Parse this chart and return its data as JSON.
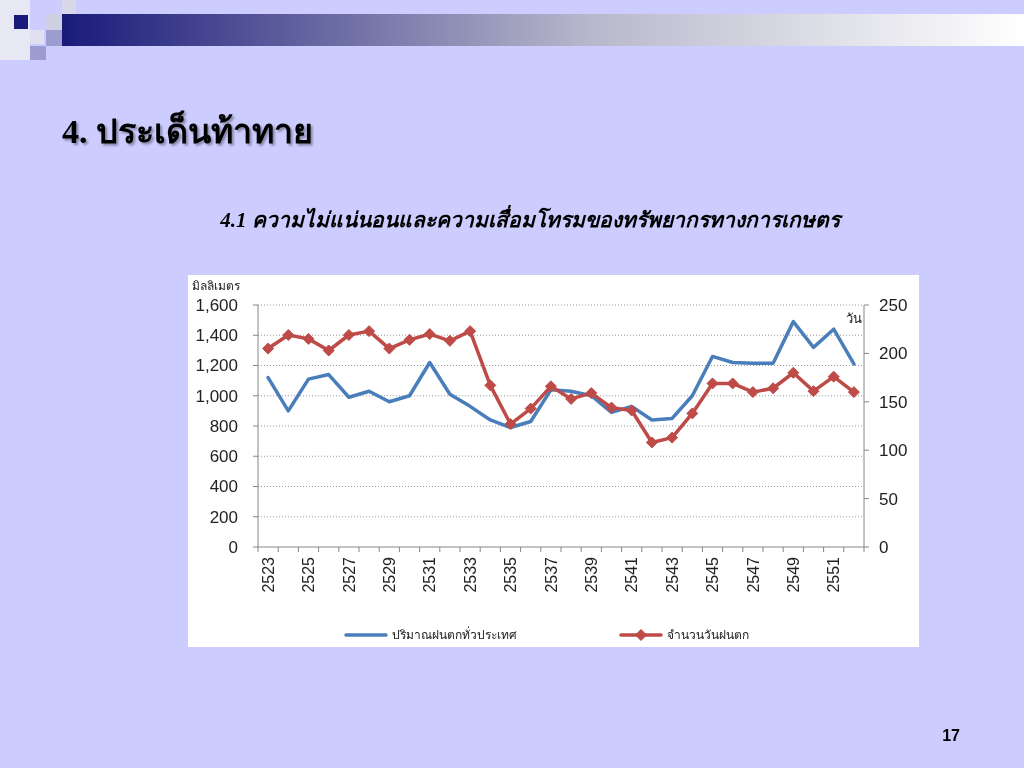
{
  "chart_data": {
    "type": "line",
    "title": "4. ประเด็นท้าทาย",
    "subtitle": "4.1  ความไม่แน่นอนและความเสื่อมโทรมของทรัพยากรทางการเกษตร",
    "ylabel": "มิลลิเมตร",
    "y2label": "วัน",
    "categories": [
      "2523",
      null,
      "2525",
      null,
      "2527",
      null,
      "2529",
      null,
      "2531",
      null,
      "2533",
      null,
      "2535",
      null,
      "2537",
      null,
      "2539",
      null,
      "2541",
      null,
      "2543",
      null,
      "2545",
      null,
      "2547",
      null,
      "2549",
      null,
      "2551",
      null
    ],
    "series": [
      {
        "name": "ปริมาณฝนตกทั่วประเทศ",
        "color": "#4a7ebb",
        "values": [
          1120,
          900,
          1110,
          1140,
          990,
          1030,
          960,
          1000,
          1220,
          1010,
          930,
          840,
          790,
          830,
          1040,
          1030,
          1000,
          890,
          930,
          840,
          850,
          1000,
          1260,
          1220,
          1215,
          1215,
          1490,
          1320,
          1440,
          1210
        ]
      },
      {
        "name": "จำนวนวันฝนตก",
        "color": "#be4b48",
        "axis": "y2",
        "marker": "diamond",
        "values": [
          205,
          219,
          215,
          203,
          219,
          223,
          205,
          214,
          220,
          213,
          223,
          167,
          127,
          143,
          166,
          153,
          159,
          144,
          141,
          108,
          113,
          138,
          169,
          169,
          160,
          164,
          180,
          161,
          176,
          160
        ]
      }
    ],
    "ylim": [
      0,
      1600
    ],
    "yticks": [
      0,
      200,
      400,
      600,
      800,
      {
        "value": 1000,
        "label": "1,000"
      },
      {
        "value": 1200,
        "label": "1,200"
      },
      {
        "value": 1400,
        "label": "1,400"
      },
      {
        "value": 1600,
        "label": "1,600"
      }
    ],
    "y2lim": [
      0,
      250
    ],
    "y2ticks": [
      0,
      50,
      100,
      150,
      200,
      250
    ],
    "grid": "y",
    "legend": "bottom",
    "annotations": [
      "17"
    ]
  }
}
